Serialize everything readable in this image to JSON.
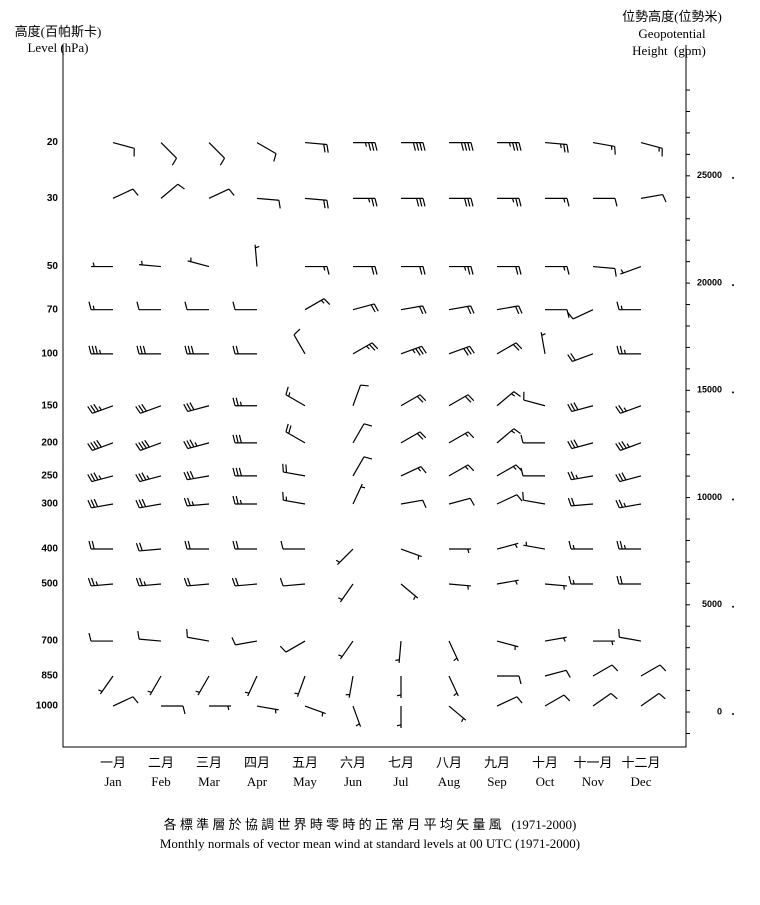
{
  "chart_data": {
    "type": "wind-barb",
    "left_axis_title": [
      "高度(百帕斯卡)",
      "Level (hPa)"
    ],
    "right_axis_title": [
      "位勢高度(位勢米)",
      "Geopotential",
      "Height  (gpm)"
    ],
    "title": "各 標 準 層 於 協 調 世 界 時 零 時 的 正 常 月 平 均 矢 量 風   (1971-2000)",
    "subtitle": "Monthly normals of vector mean wind at standard levels at 00 UTC (1971-2000)",
    "months_cn": [
      "一月",
      "二月",
      "三月",
      "四月",
      "五月",
      "六月",
      "七月",
      "八月",
      "九月",
      "十月",
      "十一月",
      "十二月"
    ],
    "categories": [
      "Jan",
      "Feb",
      "Mar",
      "Apr",
      "May",
      "Jun",
      "Jul",
      "Aug",
      "Sep",
      "Oct",
      "Nov",
      "Dec"
    ],
    "y2lim": [
      -1630,
      31100
    ],
    "y2ticks": [
      0,
      5000,
      10000,
      15000,
      20000,
      25000
    ],
    "y2minorticks": [
      -1000,
      0,
      1000,
      2000,
      3000,
      4000,
      5000,
      6000,
      7000,
      8000,
      9000,
      10000,
      11000,
      12000,
      13000,
      14000,
      15000,
      16000,
      17000,
      18000,
      19000,
      20000,
      21000,
      22000,
      23000,
      24000,
      25000,
      26000,
      27000,
      28000,
      29000
    ],
    "levels": [
      {
        "label": "20",
        "height": 26550,
        "direction": [
          105,
          135,
          135,
          120,
          95,
          90,
          90,
          90,
          90,
          95,
          100,
          105
        ],
        "speed": [
          10,
          10,
          10,
          10,
          20,
          35,
          40,
          40,
          35,
          25,
          15,
          15
        ]
      },
      {
        "label": "30",
        "height": 23950,
        "direction": [
          65,
          50,
          65,
          95,
          95,
          90,
          90,
          90,
          90,
          90,
          90,
          80
        ],
        "speed": [
          10,
          10,
          10,
          10,
          20,
          25,
          30,
          30,
          25,
          15,
          10,
          10
        ]
      },
      {
        "label": "50",
        "height": 20770,
        "direction": [
          270,
          275,
          285,
          355,
          90,
          90,
          90,
          90,
          90,
          90,
          95,
          250
        ],
        "speed": [
          5,
          5,
          5,
          5,
          15,
          20,
          20,
          25,
          20,
          15,
          10,
          5
        ]
      },
      {
        "label": "70",
        "height": 18760,
        "direction": [
          270,
          270,
          270,
          270,
          60,
          75,
          80,
          80,
          80,
          90,
          245,
          270
        ],
        "speed": [
          15,
          10,
          10,
          10,
          15,
          20,
          20,
          20,
          20,
          10,
          10,
          15
        ]
      },
      {
        "label": "100",
        "height": 16700,
        "direction": [
          270,
          270,
          270,
          270,
          330,
          60,
          70,
          70,
          60,
          350,
          250,
          270
        ],
        "speed": [
          35,
          30,
          30,
          20,
          10,
          25,
          35,
          30,
          20,
          5,
          20,
          25
        ]
      },
      {
        "label": "150",
        "height": 14280,
        "direction": [
          250,
          250,
          255,
          270,
          300,
          20,
          60,
          60,
          50,
          285,
          255,
          250
        ],
        "speed": [
          35,
          30,
          30,
          25,
          15,
          10,
          20,
          20,
          15,
          10,
          30,
          25
        ]
      },
      {
        "label": "200",
        "height": 12550,
        "direction": [
          250,
          250,
          255,
          270,
          300,
          30,
          60,
          60,
          50,
          270,
          255,
          250
        ],
        "speed": [
          40,
          40,
          35,
          30,
          20,
          10,
          20,
          15,
          15,
          10,
          30,
          35
        ]
      },
      {
        "label": "250",
        "height": 11010,
        "direction": [
          255,
          255,
          260,
          270,
          280,
          30,
          65,
          60,
          60,
          270,
          260,
          255
        ],
        "speed": [
          35,
          35,
          30,
          30,
          20,
          10,
          15,
          15,
          15,
          10,
          25,
          30
        ]
      },
      {
        "label": "300",
        "height": 9700,
        "direction": [
          260,
          260,
          265,
          270,
          280,
          25,
          80,
          75,
          65,
          280,
          265,
          260
        ],
        "speed": [
          30,
          30,
          25,
          25,
          15,
          5,
          10,
          10,
          10,
          10,
          20,
          25
        ]
      },
      {
        "label": "400",
        "height": 7600,
        "direction": [
          270,
          265,
          270,
          270,
          270,
          225,
          110,
          90,
          75,
          280,
          270,
          270
        ],
        "speed": [
          20,
          20,
          20,
          20,
          10,
          5,
          5,
          5,
          5,
          5,
          15,
          25
        ]
      },
      {
        "label": "500",
        "height": 5970,
        "direction": [
          265,
          265,
          265,
          265,
          265,
          215,
          130,
          95,
          80,
          95,
          270,
          270
        ],
        "speed": [
          25,
          25,
          20,
          20,
          10,
          5,
          5,
          5,
          5,
          5,
          15,
          20
        ]
      },
      {
        "label": "700",
        "height": 3310,
        "direction": [
          270,
          275,
          280,
          260,
          240,
          215,
          185,
          155,
          105,
          80,
          90,
          280
        ],
        "speed": [
          10,
          10,
          10,
          10,
          10,
          5,
          5,
          5,
          5,
          5,
          5,
          10
        ]
      },
      {
        "label": "850",
        "height": 1680,
        "direction": [
          215,
          210,
          210,
          205,
          200,
          190,
          180,
          155,
          90,
          75,
          60,
          60
        ],
        "speed": [
          5,
          5,
          5,
          5,
          5,
          5,
          5,
          5,
          10,
          10,
          10,
          10
        ]
      },
      {
        "label": "1000",
        "height": 280,
        "direction": [
          65,
          90,
          90,
          100,
          110,
          160,
          180,
          130,
          65,
          60,
          55,
          55
        ],
        "speed": [
          10,
          10,
          5,
          5,
          5,
          5,
          5,
          5,
          10,
          10,
          10,
          10
        ]
      }
    ]
  }
}
